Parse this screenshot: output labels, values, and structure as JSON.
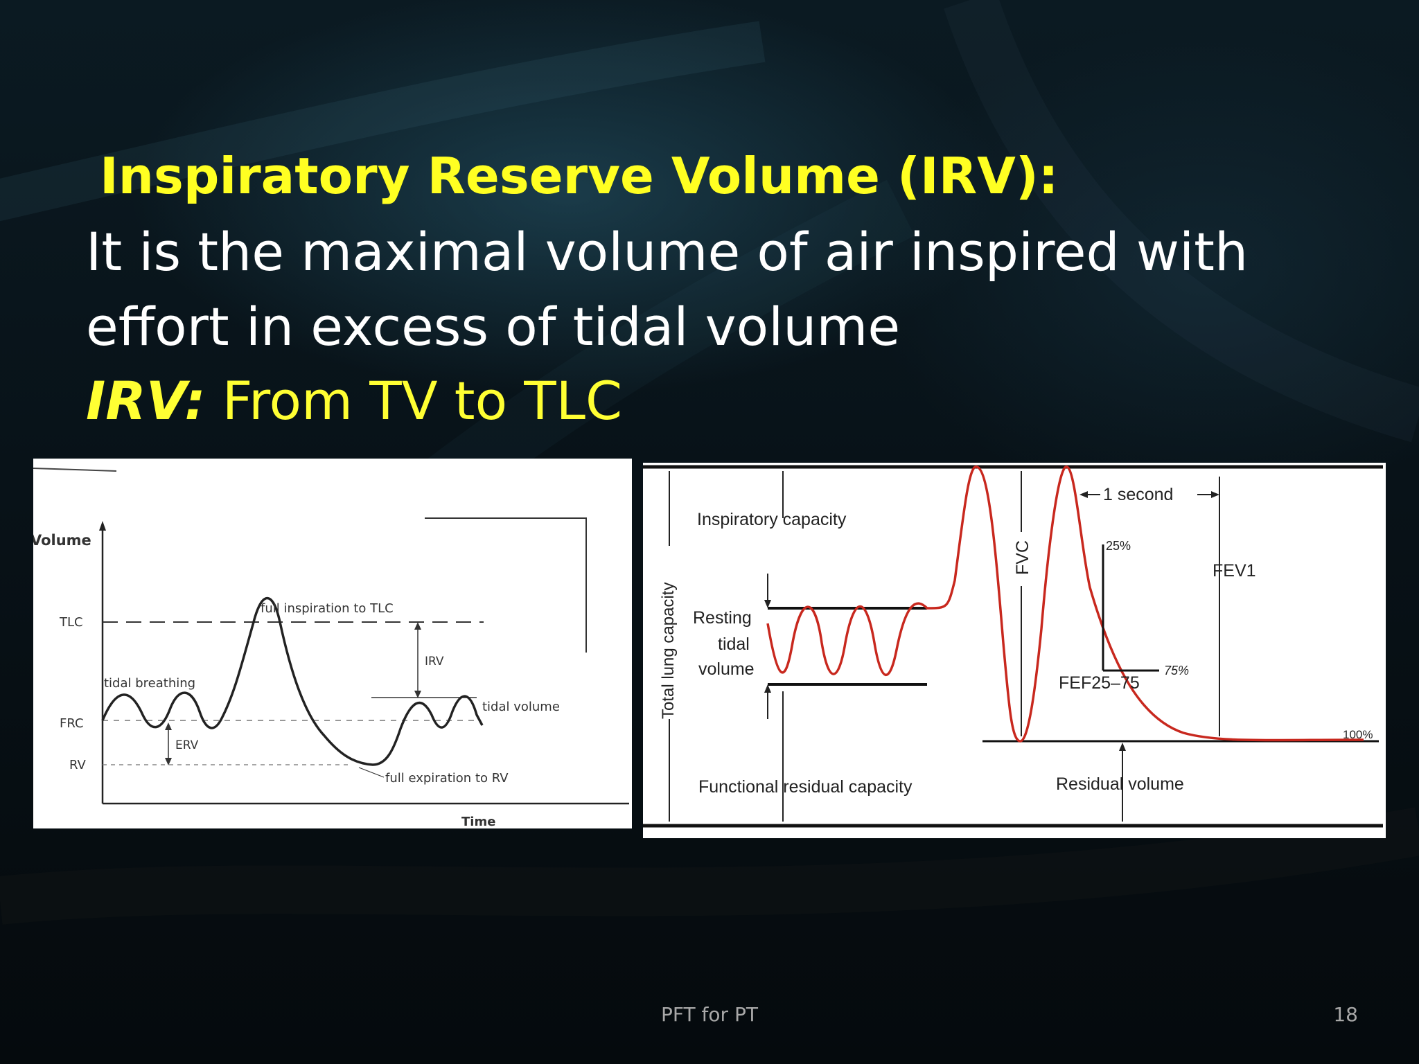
{
  "slide": {
    "title": "Inspiratory Reserve Volume (IRV):",
    "body_line1": "It is the maximal volume of air inspired with",
    "body_line2": "effort in excess of tidal volume",
    "irv_label": "IRV:",
    "irv_text": " From TV to TLC",
    "footer": "PFT for PT",
    "page_number": "18"
  },
  "colors": {
    "title": "#ffff22",
    "body": "#ffffff",
    "footer": "#a8a8a8",
    "curve_red": "#c8281e"
  },
  "left_figure": {
    "y_axis_label": "Volume",
    "x_axis_label": "Time",
    "levels": {
      "tlc": "TLC",
      "frc": "FRC",
      "rv": "RV"
    },
    "annotations": {
      "full_inspiration": "full inspiration to TLC",
      "irv": "IRV",
      "tidal_breathing": "tidal breathing",
      "tidal_volume": "tidal volume",
      "erv": "ERV",
      "full_expiration": "full expiration to RV"
    }
  },
  "right_figure": {
    "total_lung_capacity": "Total lung capacity",
    "inspiratory_capacity": "Inspiratory capacity",
    "resting_tidal_volume": [
      "Resting",
      "tidal",
      "volume"
    ],
    "fvc": "FVC",
    "one_second": "1 second",
    "pct_25": "25%",
    "pct_75": "75%",
    "pct_100": "100%",
    "fev1": "FEV1",
    "fef": "FEF25–75",
    "functional_residual_capacity": "Functional residual capacity",
    "residual_volume": "Residual volume"
  }
}
